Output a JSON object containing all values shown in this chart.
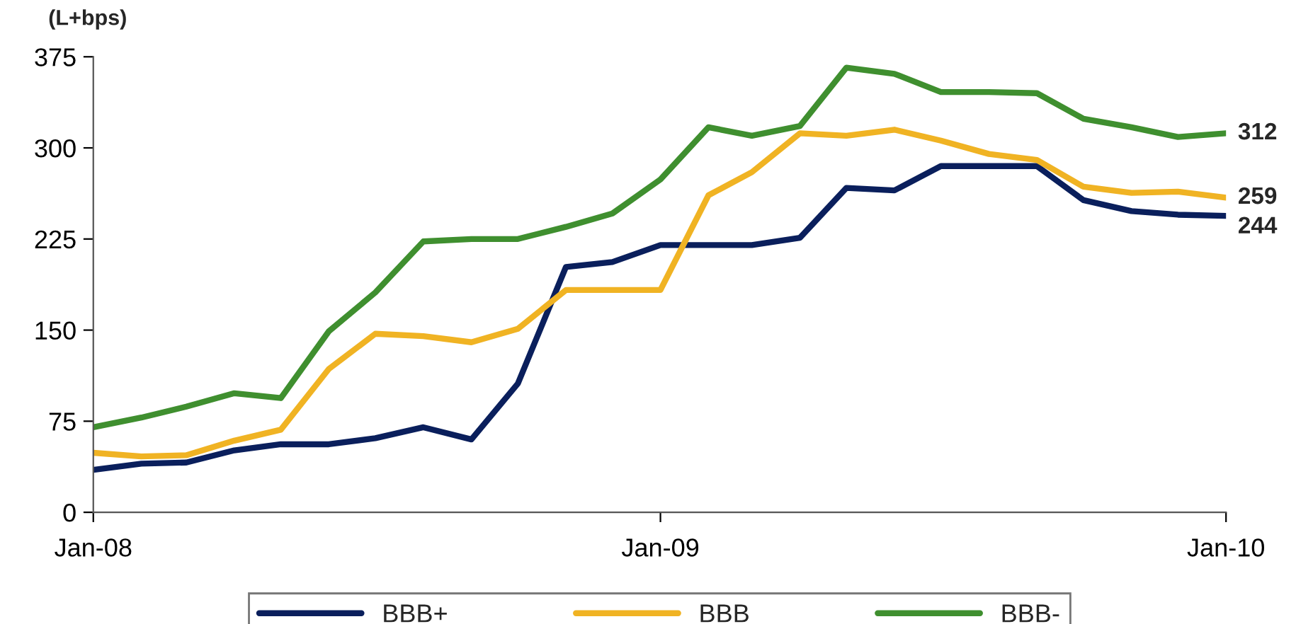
{
  "chart_data": {
    "type": "line",
    "ylabel": "(L+bps)",
    "x": [
      "2008-01",
      "2008-02",
      "2008-03",
      "2008-04",
      "2008-05",
      "2008-06",
      "2008-07",
      "2008-08",
      "2008-09",
      "2008-10",
      "2008-11",
      "2008-12",
      "2009-01",
      "2009-02",
      "2009-03",
      "2009-04",
      "2009-05",
      "2009-06",
      "2009-07",
      "2009-08",
      "2009-09",
      "2009-10",
      "2009-11",
      "2009-12",
      "2010-01"
    ],
    "series": [
      {
        "name": "BBB+",
        "color": "#0a1f5c",
        "values": [
          35,
          40,
          41,
          51,
          56,
          56,
          61,
          70,
          60,
          106,
          202,
          206,
          220,
          220,
          220,
          226,
          267,
          265,
          285,
          285,
          285,
          257,
          248,
          245,
          244
        ]
      },
      {
        "name": "BBB",
        "color": "#f0b323",
        "values": [
          49,
          46,
          47,
          59,
          68,
          118,
          147,
          145,
          140,
          151,
          183,
          183,
          183,
          261,
          280,
          312,
          310,
          315,
          306,
          295,
          290,
          268,
          263,
          264,
          259
        ]
      },
      {
        "name": "BBB-",
        "color": "#3f8f2f",
        "values": [
          70,
          78,
          87,
          98,
          94,
          149,
          181,
          223,
          225,
          225,
          235,
          246,
          274,
          317,
          310,
          318,
          366,
          361,
          346,
          346,
          345,
          324,
          317,
          309,
          312
        ]
      }
    ],
    "annotations": [
      {
        "text": "312",
        "x": "2010-01",
        "y": 312
      },
      {
        "text": "259",
        "x": "2010-01",
        "y": 259
      },
      {
        "text": "244",
        "x": "2010-01",
        "y": 244
      }
    ],
    "xlim": [
      "2008-01",
      "2010-01"
    ],
    "xticks": [
      {
        "value": "2008-01",
        "label": "Jan-08"
      },
      {
        "value": "2009-01",
        "label": "Jan-09"
      },
      {
        "value": "2010-01",
        "label": "Jan-10"
      }
    ],
    "ylim": [
      0,
      375
    ],
    "yticks": [
      0,
      75,
      150,
      225,
      300,
      375
    ],
    "legend": "bottom",
    "line_style": "solid",
    "marker": "none"
  }
}
